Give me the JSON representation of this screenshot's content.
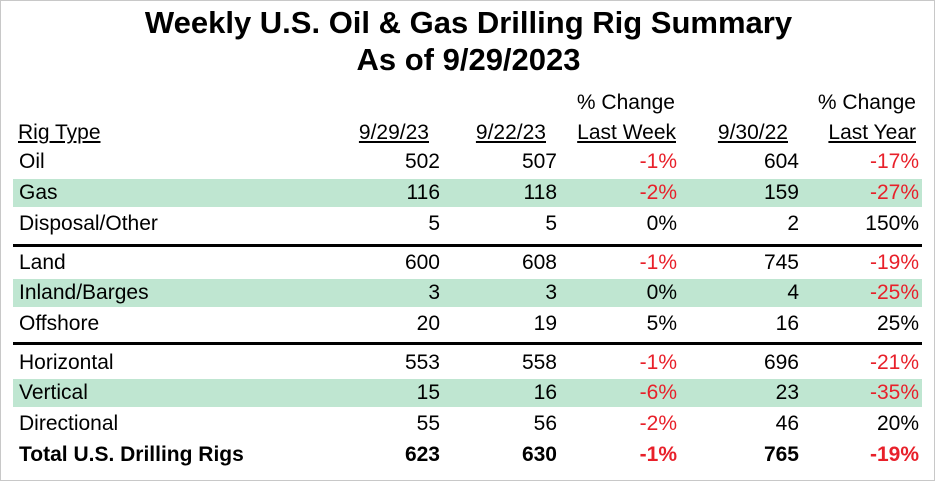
{
  "title_line1": "Weekly U.S. Oil & Gas Drilling Rig Summary",
  "title_line2": "As of 9/29/2023",
  "headers": {
    "rig_type": "Rig Type",
    "col1": "9/29/23",
    "col2": "9/22/23",
    "col3_top": "% Change",
    "col3_bottom": "Last Week",
    "col4": "9/30/22",
    "col5_top": "% Change",
    "col5_bottom": "Last Year"
  },
  "colors": {
    "negative": "#e8202a",
    "band": "#bfe6d1"
  },
  "rows": [
    {
      "label": "Oil",
      "c1": "502",
      "c2": "507",
      "c3": "-1%",
      "c4": "604",
      "c5": "-17%",
      "c3_neg": true,
      "c5_neg": true,
      "band": false
    },
    {
      "label": "Gas",
      "c1": "116",
      "c2": "118",
      "c3": "-2%",
      "c4": "159",
      "c5": "-27%",
      "c3_neg": true,
      "c5_neg": true,
      "band": true
    },
    {
      "label": "Disposal/Other",
      "c1": "5",
      "c2": "5",
      "c3": "0%",
      "c4": "2",
      "c5": "150%",
      "c3_neg": false,
      "c5_neg": false,
      "band": false
    },
    {
      "label": "Land",
      "c1": "600",
      "c2": "608",
      "c3": "-1%",
      "c4": "745",
      "c5": "-19%",
      "c3_neg": true,
      "c5_neg": true,
      "band": false
    },
    {
      "label": "Inland/Barges",
      "c1": "3",
      "c2": "3",
      "c3": "0%",
      "c4": "4",
      "c5": "-25%",
      "c3_neg": false,
      "c5_neg": true,
      "band": true
    },
    {
      "label": "Offshore",
      "c1": "20",
      "c2": "19",
      "c3": "5%",
      "c4": "16",
      "c5": "25%",
      "c3_neg": false,
      "c5_neg": false,
      "band": false
    },
    {
      "label": "Horizontal",
      "c1": "553",
      "c2": "558",
      "c3": "-1%",
      "c4": "696",
      "c5": "-21%",
      "c3_neg": true,
      "c5_neg": true,
      "band": false
    },
    {
      "label": "Vertical",
      "c1": "15",
      "c2": "16",
      "c3": "-6%",
      "c4": "23",
      "c5": "-35%",
      "c3_neg": true,
      "c5_neg": true,
      "band": true
    },
    {
      "label": "Directional",
      "c1": "55",
      "c2": "56",
      "c3": "-2%",
      "c4": "46",
      "c5": "20%",
      "c3_neg": true,
      "c5_neg": false,
      "band": false
    },
    {
      "label": "Total U.S. Drilling Rigs",
      "c1": "623",
      "c2": "630",
      "c3": "-1%",
      "c4": "765",
      "c5": "-19%",
      "c3_neg": true,
      "c5_neg": true,
      "band": false
    }
  ]
}
